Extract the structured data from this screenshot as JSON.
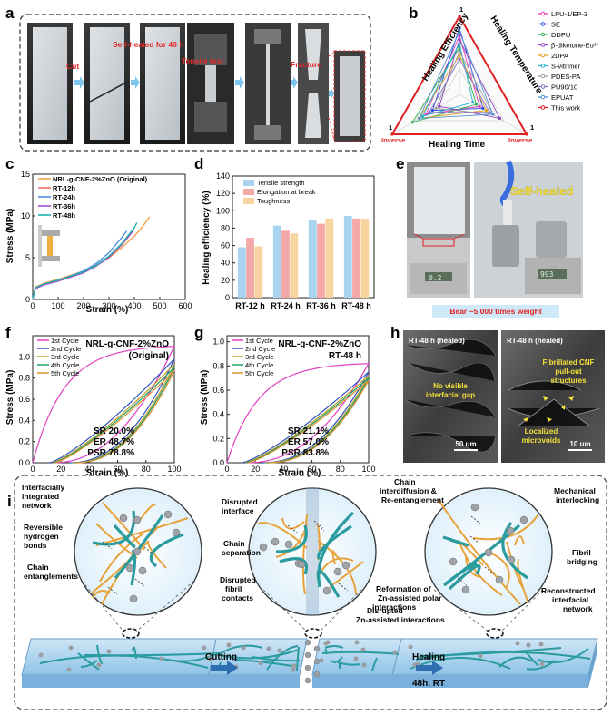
{
  "panels": {
    "a": {
      "label": "a",
      "steps": [
        "Cut",
        "Self-healed for 48 h",
        "Tensile test",
        "Fracture"
      ]
    },
    "b": {
      "label": "b",
      "axes": [
        "Healing Efficiency",
        "Healing Temperature",
        "Healing Time"
      ],
      "corner_labels": {
        "top": "1",
        "left": "1",
        "right": "1",
        "bottom_left": "Inverse",
        "bottom_right": "Inverse"
      },
      "legend": [
        "LPU-1/EP-3",
        "SE",
        "DDPU",
        "β-diketone-Eu³⁺",
        "2DPA",
        "S-vitrimer",
        "PDES-PA",
        "PU90/10",
        "EPUAT",
        "This work"
      ],
      "colors": [
        "#e040c0",
        "#3050e0",
        "#30b050",
        "#9040c0",
        "#e0a020",
        "#20b0d0",
        "#a0a0a0",
        "#8070c0",
        "#5090d0",
        "#e02020"
      ]
    },
    "c": {
      "label": "c",
      "xlabel": "Strain (%)",
      "ylabel": "Stress (MPa)",
      "legend": [
        "NRL-g-CNF-2%ZnO (Original)",
        "RT-12h",
        "RT-24h",
        "RT-36h",
        "RT-48h"
      ],
      "colors": [
        "#f0a050",
        "#f07070",
        "#5090e0",
        "#a050d0",
        "#20b0b0"
      ]
    },
    "d": {
      "label": "d",
      "ylabel": "Healing efficiency (%)",
      "legend": [
        "Tensile strength",
        "Elongation at break",
        "Toughness"
      ],
      "colors": [
        "#a8d4f0",
        "#f4a8a8",
        "#f8d4a0"
      ]
    },
    "e": {
      "label": "e",
      "overlay": "Self-healed",
      "caption": "Bear ~5,000 times weight",
      "readout1": "0.2",
      "readout2": "993"
    },
    "f": {
      "label": "f",
      "title_line1": "NRL-g-CNF-2%ZnO",
      "title_line2": "(Original)",
      "xlabel": "Strain (%)",
      "ylabel": "Stress (MPa)",
      "legend": [
        "1st Cycle",
        "2nd Cycle",
        "3rd Cycle",
        "4th Cycle",
        "5th Cycle"
      ],
      "stats": [
        "SR 20.0%",
        "ER 48.7%",
        "PSR 78.8%"
      ]
    },
    "g": {
      "label": "g",
      "title_line1": "NRL-g-CNF-2%ZnO",
      "title_line2": "RT-48 h",
      "xlabel": "Strain (%)",
      "ylabel": "Stress (MPa)",
      "legend": [
        "1st Cycle",
        "2nd Cycle",
        "3rd Cycle",
        "4th Cycle",
        "5th Cycle"
      ],
      "stats": [
        "SR 21.1%",
        "ER 57.0%",
        "PSR 83.8%"
      ]
    },
    "h": {
      "label": "h",
      "left_title": "RT-48 h (healed)",
      "left_note": "No visible interfacial gap",
      "left_scale": "50 um",
      "right_title": "RT-48 h (healed)",
      "right_note1": "Fibrillated CNF pull-out structures",
      "right_note2": "Localized microvoids",
      "right_scale": "10 um"
    },
    "i": {
      "label": "i",
      "left_labels": [
        "Interfacially integrated network",
        "Reversible hydrogen bonds",
        "Chain entanglements"
      ],
      "mid_labels": [
        "Disrupted interface",
        "Chain separation",
        "Disrupted fibril contacts",
        "Disrupted Zn-assisted interactions"
      ],
      "right_labels": [
        "Chain interdiffusion & Re-entanglement",
        "Mechanical interlocking",
        "Fibril bridging",
        "Reformation of Zn-assisted polar interactions",
        "Reconstructed interfacial network"
      ],
      "arrow1": "Cutting",
      "arrow2_line1": "Healing",
      "arrow2_line2": "48h, RT"
    }
  },
  "chart_data": [
    {
      "id": "c",
      "type": "line",
      "xlabel": "Strain (%)",
      "ylabel": "Stress (MPa)",
      "xlim": [
        0,
        600
      ],
      "ylim": [
        0,
        15
      ],
      "xticks": [
        0,
        100,
        200,
        300,
        400,
        500,
        600
      ],
      "yticks": [
        0,
        5,
        10,
        15
      ],
      "series": [
        {
          "name": "NRL-g-CNF-2%ZnO (Original)",
          "x": [
            0,
            10,
            50,
            100,
            150,
            200,
            250,
            300,
            350,
            400,
            430,
            450,
            460
          ],
          "y": [
            0,
            1.5,
            2.0,
            2.4,
            2.9,
            3.4,
            4.1,
            5.0,
            6.2,
            7.6,
            8.6,
            9.5,
            9.9
          ]
        },
        {
          "name": "RT-12h",
          "x": [
            0,
            10,
            50,
            100,
            150,
            200,
            250,
            300,
            350,
            380
          ],
          "y": [
            0,
            1.3,
            1.8,
            2.2,
            2.7,
            3.2,
            4.0,
            5.0,
            6.5,
            7.6
          ]
        },
        {
          "name": "RT-24h",
          "x": [
            0,
            10,
            50,
            100,
            150,
            200,
            250,
            300,
            350,
            370
          ],
          "y": [
            0,
            1.4,
            1.9,
            2.3,
            2.8,
            3.4,
            4.3,
            5.6,
            7.4,
            8.2
          ]
        },
        {
          "name": "RT-36h",
          "x": [
            0,
            10,
            50,
            100,
            150,
            200,
            250,
            300,
            350,
            390,
            400
          ],
          "y": [
            0,
            1.3,
            1.8,
            2.2,
            2.7,
            3.2,
            4.0,
            5.1,
            6.6,
            8.0,
            8.6
          ]
        },
        {
          "name": "RT-48h",
          "x": [
            0,
            10,
            50,
            100,
            150,
            200,
            250,
            300,
            350,
            400,
            410
          ],
          "y": [
            0,
            1.4,
            1.9,
            2.3,
            2.8,
            3.3,
            4.1,
            5.2,
            6.7,
            8.6,
            9.2
          ]
        }
      ]
    },
    {
      "id": "d",
      "type": "bar",
      "ylabel": "Healing efficiency (%)",
      "ylim": [
        0,
        140
      ],
      "yticks": [
        0,
        20,
        40,
        60,
        80,
        100,
        120,
        140
      ],
      "categories": [
        "RT-12 h",
        "RT-24 h",
        "RT-36 h",
        "RT-48 h"
      ],
      "series": [
        {
          "name": "Tensile strength",
          "values": [
            58,
            83,
            89,
            94
          ]
        },
        {
          "name": "Elongation at break",
          "values": [
            69,
            77,
            85,
            91
          ]
        },
        {
          "name": "Toughness",
          "values": [
            59,
            74,
            91,
            91
          ]
        }
      ]
    },
    {
      "id": "f",
      "type": "line",
      "xlabel": "Strain (%)",
      "ylabel": "Stress (MPa)",
      "xlim": [
        0,
        100
      ],
      "ylim": [
        0,
        1.2
      ],
      "xticks": [
        0,
        20,
        40,
        60,
        80,
        100
      ],
      "yticks": [
        0.0,
        0.2,
        0.4,
        0.6,
        0.8,
        1.0
      ],
      "series": [
        {
          "name": "1st Cycle",
          "peak": 1.1,
          "x0": 0
        },
        {
          "name": "2nd Cycle",
          "peak": 0.98,
          "x0": 12
        },
        {
          "name": "3rd Cycle",
          "peak": 0.93,
          "x0": 14
        },
        {
          "name": "4th Cycle",
          "peak": 0.9,
          "x0": 15
        },
        {
          "name": "5th Cycle",
          "peak": 0.87,
          "x0": 16
        }
      ]
    },
    {
      "id": "g",
      "type": "line",
      "xlabel": "Strain (%)",
      "ylabel": "Stress (MPa)",
      "xlim": [
        0,
        100
      ],
      "ylim": [
        0,
        1.05
      ],
      "xticks": [
        0,
        20,
        40,
        60,
        80,
        100
      ],
      "yticks": [
        0.0,
        0.2,
        0.4,
        0.6,
        0.8,
        1.0
      ],
      "series": [
        {
          "name": "1st Cycle",
          "peak": 0.82,
          "x0": 0
        },
        {
          "name": "2nd Cycle",
          "peak": 0.75,
          "x0": 11
        },
        {
          "name": "3rd Cycle",
          "peak": 0.72,
          "x0": 13
        },
        {
          "name": "4th Cycle",
          "peak": 0.7,
          "x0": 14
        },
        {
          "name": "5th Cycle",
          "peak": 0.68,
          "x0": 15
        }
      ]
    }
  ]
}
